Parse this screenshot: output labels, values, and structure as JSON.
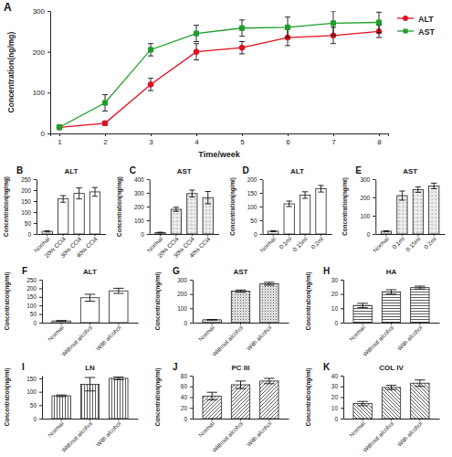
{
  "chart_data": [
    {
      "type": "line",
      "panel_label": "A",
      "xlabel": "Time/week",
      "ylabel": "Concentration(ng/mg)",
      "x": [
        1,
        2,
        3,
        4,
        5,
        6,
        7,
        8
      ],
      "xlim": [
        0.8,
        8.2
      ],
      "xticks": [
        1,
        2,
        3,
        4,
        5,
        6,
        7,
        8
      ],
      "ylim": [
        0,
        300
      ],
      "yticks": [
        0,
        100,
        200,
        300
      ],
      "legend": "right",
      "series": [
        {
          "name": "ALT",
          "color": "#e0101e",
          "marker": "circle",
          "values": [
            15,
            25,
            120,
            200,
            210,
            235,
            240,
            250
          ],
          "errors": [
            5,
            5,
            15,
            20,
            15,
            20,
            20,
            15
          ]
        },
        {
          "name": "AST",
          "color": "#1f9e2a",
          "marker": "square",
          "values": [
            15,
            75,
            205,
            245,
            258,
            260,
            270,
            272
          ],
          "errors": [
            5,
            20,
            15,
            20,
            20,
            25,
            30,
            25
          ]
        }
      ]
    },
    {
      "type": "bar",
      "panel_label": "B",
      "title": "ALT",
      "ylabel": "Concentration(ng/mg)",
      "categories": [
        "Normal",
        "20% CCl4",
        "30% CCl4",
        "40% CCl4"
      ],
      "values": [
        12,
        160,
        185,
        192
      ],
      "errors": [
        3,
        15,
        25,
        20
      ],
      "ylim": [
        0,
        250
      ],
      "yticks": [
        0,
        50,
        100,
        150,
        200,
        250
      ]
    },
    {
      "type": "bar",
      "panel_label": "C",
      "title": "AST",
      "ylabel": "Concentration(ng/mg)",
      "categories": [
        "Normal",
        "20% CCl4",
        "30% CCl4",
        "40% CCl4"
      ],
      "values": [
        10,
        180,
        295,
        265
      ],
      "errors": [
        3,
        15,
        25,
        45
      ],
      "ylim": [
        0,
        400
      ],
      "yticks": [
        0,
        100,
        200,
        300,
        400
      ]
    },
    {
      "type": "bar",
      "panel_label": "D",
      "title": "ALT",
      "ylabel": "Concentration(ng/ml)",
      "categories": [
        "Normal",
        "0.1ml",
        "0.15ml",
        "0.2ml"
      ],
      "values": [
        10,
        110,
        142,
        165
      ],
      "errors": [
        2,
        10,
        12,
        12
      ],
      "ylim": [
        0,
        200
      ],
      "yticks": [
        0,
        50,
        100,
        150,
        200
      ]
    },
    {
      "type": "bar",
      "panel_label": "E",
      "title": "AST",
      "ylabel": "Concentration(ng/ml)",
      "categories": [
        "Normal",
        "0.1ml",
        "0.15ml",
        "0.2ml"
      ],
      "values": [
        15,
        210,
        243,
        263
      ],
      "errors": [
        2,
        25,
        15,
        15
      ],
      "ylim": [
        0,
        300
      ],
      "yticks": [
        0,
        100,
        200,
        300
      ]
    },
    {
      "type": "bar",
      "panel_label": "F",
      "title": "ALT",
      "ylabel": "Concentration(ng/ml)",
      "categories": [
        "Normal",
        "Without alcohol",
        "With alcohol"
      ],
      "values": [
        10,
        145,
        185
      ],
      "errors": [
        2,
        20,
        15
      ],
      "ylim": [
        0,
        250
      ],
      "yticks": [
        0,
        50,
        100,
        150,
        200,
        250
      ]
    },
    {
      "type": "bar",
      "panel_label": "G",
      "title": "AST",
      "ylabel": "Concentration(ng/ml)",
      "categories": [
        "Normal",
        "Without alcohol",
        "With alcohol"
      ],
      "values": [
        20,
        220,
        272
      ],
      "errors": [
        2,
        8,
        10
      ],
      "ylim": [
        0,
        300
      ],
      "yticks": [
        0,
        100,
        200,
        300
      ]
    },
    {
      "type": "bar",
      "panel_label": "H",
      "title": "HA",
      "ylabel": "Concentration(ng/ml)",
      "categories": [
        "Normal",
        "Without alcohol",
        "With alcohol"
      ],
      "values": [
        12,
        21.5,
        24.5
      ],
      "errors": [
        1.5,
        1.5,
        1
      ],
      "ylim": [
        0,
        30
      ],
      "yticks": [
        0,
        10,
        20,
        30
      ]
    },
    {
      "type": "bar",
      "panel_label": "I",
      "title": "LN",
      "ylabel": "Concentration(ng/ml)",
      "categories": [
        "Normal",
        "Without alcohol",
        "With alcohol"
      ],
      "values": [
        85,
        128,
        150
      ],
      "errors": [
        3,
        25,
        5
      ],
      "ylim": [
        0,
        160
      ],
      "yticks": [
        0,
        50,
        100,
        150
      ]
    },
    {
      "type": "bar",
      "panel_label": "J",
      "title": "PC III",
      "ylabel": "Concentration(ng/ml)",
      "categories": [
        "Normal",
        "Without alcohol",
        "With alcohol"
      ],
      "values": [
        42,
        63,
        70
      ],
      "errors": [
        7,
        7,
        5
      ],
      "ylim": [
        0,
        80
      ],
      "yticks": [
        0,
        20,
        40,
        60,
        80
      ]
    },
    {
      "type": "bar",
      "panel_label": "K",
      "title": "COL IV",
      "ylabel": "Concentration(ng/ml)",
      "categories": [
        "Normal",
        "Without alcohol",
        "With alcohol"
      ],
      "values": [
        14,
        29,
        33
      ],
      "errors": [
        2,
        2,
        3
      ],
      "ylim": [
        0,
        40
      ],
      "yticks": [
        0,
        10,
        20,
        30,
        40
      ]
    }
  ]
}
